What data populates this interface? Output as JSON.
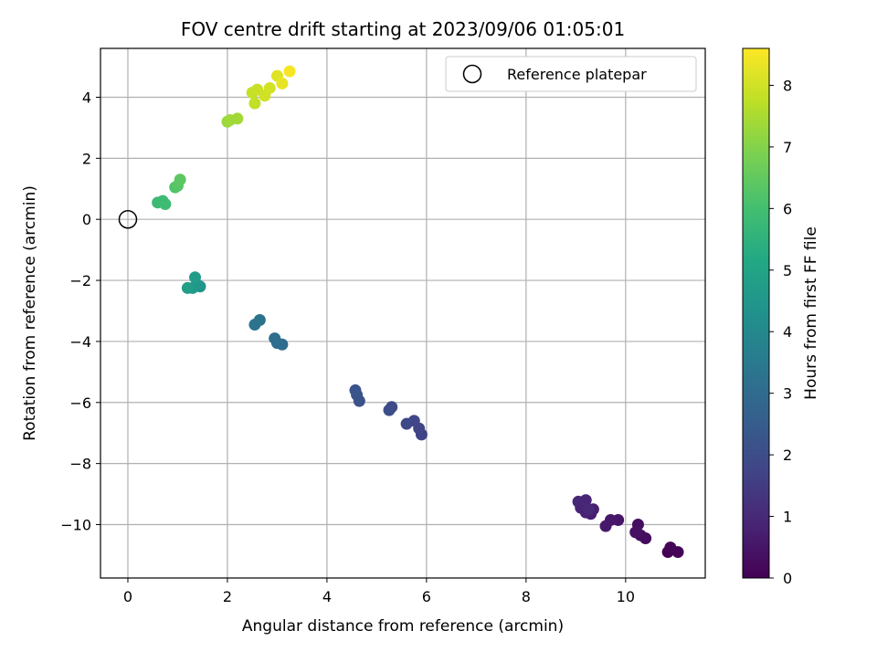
{
  "chart_data": {
    "type": "scatter",
    "title": "FOV centre drift starting at 2023/09/06 01:05:01",
    "xlabel": "Angular distance from reference (arcmin)",
    "ylabel": "Rotation from reference (arcmin)",
    "xlim": [
      -0.55,
      11.6
    ],
    "ylim": [
      -11.75,
      5.6
    ],
    "xticks": [
      0,
      2,
      4,
      6,
      8,
      10
    ],
    "yticks": [
      -10,
      -8,
      -6,
      -4,
      -2,
      0,
      2,
      4
    ],
    "xtick_labels": [
      "0",
      "2",
      "4",
      "6",
      "8",
      "10"
    ],
    "ytick_labels": [
      "−10",
      "−8",
      "−6",
      "−4",
      "−2",
      "0",
      "2",
      "4"
    ],
    "grid": true,
    "legend": {
      "placement": "top-right",
      "entries": [
        {
          "label": "Reference platepar",
          "marker": "hollow-circle",
          "color": "#000000"
        }
      ]
    },
    "reference_point": {
      "x": 0,
      "y": 0
    },
    "colorbar": {
      "label": "Hours from first FF file",
      "colormap": "viridis",
      "range": [
        0,
        8.6
      ],
      "ticks": [
        0,
        1,
        2,
        3,
        4,
        5,
        6,
        7,
        8
      ],
      "tick_labels": [
        "0",
        "1",
        "2",
        "3",
        "4",
        "5",
        "6",
        "7",
        "8"
      ]
    },
    "points": [
      {
        "x": 10.85,
        "y": -10.9,
        "hours": 0.0
      },
      {
        "x": 11.05,
        "y": -10.9,
        "hours": 0.05
      },
      {
        "x": 10.9,
        "y": -10.75,
        "hours": 0.1
      },
      {
        "x": 10.4,
        "y": -10.45,
        "hours": 0.25
      },
      {
        "x": 10.3,
        "y": -10.35,
        "hours": 0.3
      },
      {
        "x": 10.25,
        "y": -10.0,
        "hours": 0.35
      },
      {
        "x": 10.2,
        "y": -10.25,
        "hours": 0.4
      },
      {
        "x": 9.85,
        "y": -9.85,
        "hours": 0.5
      },
      {
        "x": 9.7,
        "y": -9.85,
        "hours": 0.55
      },
      {
        "x": 9.6,
        "y": -10.05,
        "hours": 0.6
      },
      {
        "x": 9.3,
        "y": -9.65,
        "hours": 0.7
      },
      {
        "x": 9.35,
        "y": -9.5,
        "hours": 0.75
      },
      {
        "x": 9.2,
        "y": -9.6,
        "hours": 0.8
      },
      {
        "x": 9.1,
        "y": -9.45,
        "hours": 0.85
      },
      {
        "x": 9.2,
        "y": -9.2,
        "hours": 0.9
      },
      {
        "x": 9.05,
        "y": -9.25,
        "hours": 0.95
      },
      {
        "x": 9.25,
        "y": -9.5,
        "hours": 1.0
      },
      {
        "x": 5.9,
        "y": -7.05,
        "hours": 1.7
      },
      {
        "x": 5.85,
        "y": -6.85,
        "hours": 1.75
      },
      {
        "x": 5.75,
        "y": -6.6,
        "hours": 1.8
      },
      {
        "x": 5.6,
        "y": -6.7,
        "hours": 1.85
      },
      {
        "x": 5.3,
        "y": -6.15,
        "hours": 1.95
      },
      {
        "x": 5.25,
        "y": -6.25,
        "hours": 2.0
      },
      {
        "x": 4.65,
        "y": -5.95,
        "hours": 2.15
      },
      {
        "x": 4.6,
        "y": -5.75,
        "hours": 2.2
      },
      {
        "x": 4.57,
        "y": -5.6,
        "hours": 2.25
      },
      {
        "x": 3.1,
        "y": -4.1,
        "hours": 3.0
      },
      {
        "x": 3.0,
        "y": -4.05,
        "hours": 3.05
      },
      {
        "x": 2.95,
        "y": -3.9,
        "hours": 3.1
      },
      {
        "x": 2.65,
        "y": -3.3,
        "hours": 3.25
      },
      {
        "x": 2.55,
        "y": -3.45,
        "hours": 3.3
      },
      {
        "x": 1.45,
        "y": -2.2,
        "hours": 4.4
      },
      {
        "x": 1.4,
        "y": -2.15,
        "hours": 4.5
      },
      {
        "x": 1.3,
        "y": -2.25,
        "hours": 4.6
      },
      {
        "x": 1.35,
        "y": -1.9,
        "hours": 4.7
      },
      {
        "x": 1.2,
        "y": -2.25,
        "hours": 4.8
      },
      {
        "x": 0.6,
        "y": 0.55,
        "hours": 5.8
      },
      {
        "x": 0.7,
        "y": 0.6,
        "hours": 5.85
      },
      {
        "x": 0.75,
        "y": 0.5,
        "hours": 5.9
      },
      {
        "x": 0.95,
        "y": 1.05,
        "hours": 6.2
      },
      {
        "x": 1.0,
        "y": 1.1,
        "hours": 6.3
      },
      {
        "x": 1.05,
        "y": 1.3,
        "hours": 6.4
      },
      {
        "x": 2.0,
        "y": 3.2,
        "hours": 7.3
      },
      {
        "x": 2.05,
        "y": 3.25,
        "hours": 7.35
      },
      {
        "x": 2.2,
        "y": 3.3,
        "hours": 7.4
      },
      {
        "x": 2.55,
        "y": 3.8,
        "hours": 7.8
      },
      {
        "x": 2.5,
        "y": 4.15,
        "hours": 7.85
      },
      {
        "x": 2.6,
        "y": 4.25,
        "hours": 7.9
      },
      {
        "x": 2.75,
        "y": 4.05,
        "hours": 8.0
      },
      {
        "x": 2.85,
        "y": 4.3,
        "hours": 8.05
      },
      {
        "x": 3.0,
        "y": 4.7,
        "hours": 8.2
      },
      {
        "x": 3.1,
        "y": 4.45,
        "hours": 8.3
      },
      {
        "x": 3.25,
        "y": 4.85,
        "hours": 8.5
      }
    ]
  }
}
